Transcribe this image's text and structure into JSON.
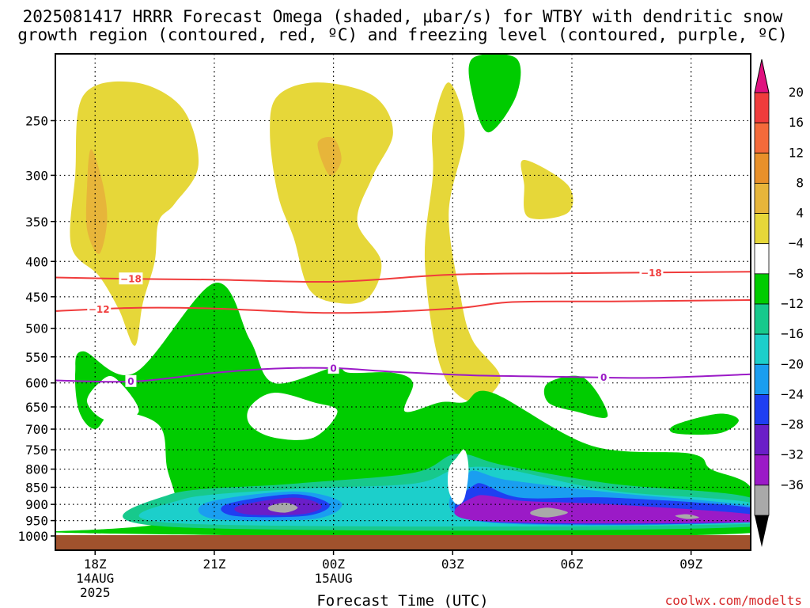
{
  "title": {
    "line1": "2025081417 HRRR Forecast Omega (shaded, μbar/s) for WTBY with dendritic snow",
    "line2": "growth region (contoured, red, ºC) and freezing level (contoured, purple, ºC)"
  },
  "credit": "coolwx.com/modelts",
  "chart_data": {
    "type": "time-height cross section",
    "xlabel": "Forecast Time (UTC)",
    "x_unit": "hours after 2025-08-14 18Z",
    "xlim": [
      -1,
      16.5
    ],
    "x_ticks": [
      {
        "x": 0,
        "lines": [
          "18Z",
          "14AUG",
          "2025"
        ]
      },
      {
        "x": 3,
        "lines": [
          "21Z"
        ]
      },
      {
        "x": 6,
        "lines": [
          "00Z",
          "15AUG"
        ]
      },
      {
        "x": 9,
        "lines": [
          "03Z"
        ]
      },
      {
        "x": 12,
        "lines": [
          "06Z"
        ]
      },
      {
        "x": 15,
        "lines": [
          "09Z"
        ]
      }
    ],
    "y_unit": "hPa",
    "y_scale": "log (pressure)",
    "ylim": [
      200,
      1000
    ],
    "y_ticks": [
      250,
      300,
      350,
      400,
      450,
      500,
      550,
      600,
      650,
      700,
      750,
      800,
      850,
      900,
      950,
      1000
    ],
    "grid": "dotted",
    "ground_color": "#a0522d",
    "colorbar": {
      "labels": [
        "20",
        "16",
        "12",
        "8",
        "4",
        "−4",
        "−8",
        "−12",
        "−16",
        "−20",
        "−24",
        "−28",
        "−32",
        "−36"
      ],
      "top_arrow_color": "#e0117f",
      "bottom_arrow_color": "#000000",
      "colors": [
        "#f03c3c",
        "#f46a3a",
        "#e8902a",
        "#e7b53a",
        "#e6d739",
        "#ffffff",
        "#00cc00",
        "#17c98c",
        "#1ccfcb",
        "#1a9ef0",
        "#1f3ff2",
        "#6a1ec8",
        "#9b1ac7",
        "#a9a9a9"
      ]
    },
    "omega_regions": [
      {
        "level": "4 to 8",
        "color": "#e6d739",
        "points": [
          [
            -0.3,
            230
          ],
          [
            1,
            220
          ],
          [
            2.2,
            240
          ],
          [
            2.6,
            290
          ],
          [
            2,
            330
          ],
          [
            1.6,
            350
          ],
          [
            1.5,
            400
          ],
          [
            1.2,
            460
          ],
          [
            1,
            530
          ],
          [
            0.6,
            470
          ],
          [
            0.1,
            420
          ],
          [
            -0.6,
            380
          ],
          [
            -0.5,
            300
          ]
        ]
      },
      {
        "level": "8 to 12",
        "color": "#e7b53a",
        "points": [
          [
            -0.1,
            275
          ],
          [
            0.2,
            310
          ],
          [
            0.3,
            350
          ],
          [
            0.1,
            390
          ],
          [
            -0.2,
            360
          ],
          [
            -0.2,
            310
          ]
        ]
      },
      {
        "level": "4 to 8",
        "color": "#e6d739",
        "points": [
          [
            4.6,
            230
          ],
          [
            5.6,
            220
          ],
          [
            7,
            230
          ],
          [
            7.5,
            260
          ],
          [
            7,
            300
          ],
          [
            6.6,
            350
          ],
          [
            7.2,
            400
          ],
          [
            6.9,
            450
          ],
          [
            6.2,
            460
          ],
          [
            5.4,
            440
          ],
          [
            5,
            370
          ],
          [
            4.6,
            320
          ],
          [
            4.4,
            260
          ]
        ]
      },
      {
        "level": "8 to 12",
        "color": "#e7b53a",
        "points": [
          [
            5.6,
            270
          ],
          [
            6,
            265
          ],
          [
            6.2,
            285
          ],
          [
            5.9,
            300
          ]
        ]
      },
      {
        "level": "4 to 8",
        "color": "#e6d739",
        "points": [
          [
            8.5,
            255
          ],
          [
            8.9,
            220
          ],
          [
            9.3,
            260
          ],
          [
            8.9,
            340
          ],
          [
            9.2,
            450
          ],
          [
            9.5,
            520
          ],
          [
            10.2,
            590
          ],
          [
            9.5,
            640
          ],
          [
            8.7,
            570
          ],
          [
            8.3,
            400
          ],
          [
            8.5,
            300
          ]
        ]
      },
      {
        "level": "4 to 8",
        "color": "#e6d739",
        "points": [
          [
            10.8,
            285
          ],
          [
            11.9,
            310
          ],
          [
            11.9,
            340
          ],
          [
            10.9,
            345
          ],
          [
            10.8,
            310
          ]
        ]
      },
      {
        "level": "4 to 8",
        "color": "#e6d739",
        "points": [
          [
            3.1,
            760
          ],
          [
            4.7,
            740
          ],
          [
            5.3,
            760
          ],
          [
            3.2,
            790
          ]
        ]
      },
      {
        "level": "-4 to -8",
        "color": "#00cc00",
        "points": [
          [
            9.5,
            203
          ],
          [
            10.6,
            203
          ],
          [
            10.6,
            230
          ],
          [
            9.9,
            260
          ],
          [
            9.5,
            230
          ]
        ]
      },
      {
        "level": "-4 to -8",
        "color": "#00cc00",
        "points": [
          [
            -0.3,
            540
          ],
          [
            1,
            580
          ],
          [
            3,
            430
          ],
          [
            3.9,
            520
          ],
          [
            4.5,
            600
          ],
          [
            6,
            570
          ],
          [
            6.4,
            580
          ],
          [
            7.5,
            580
          ],
          [
            8,
            600
          ],
          [
            7.8,
            660
          ],
          [
            8.7,
            640
          ],
          [
            9.3,
            640
          ],
          [
            10,
            620
          ],
          [
            12.5,
            740
          ],
          [
            15,
            760
          ],
          [
            15.5,
            800
          ],
          [
            16.5,
            850
          ],
          [
            16.5,
            990
          ],
          [
            -0.5,
            990
          ],
          [
            1.9,
            950
          ],
          [
            1.8,
            790
          ],
          [
            1.6,
            690
          ],
          [
            0.5,
            660
          ],
          [
            0,
            700
          ],
          [
            -0.4,
            660
          ],
          [
            -0.5,
            580
          ]
        ]
      },
      {
        "level": "-8 to -12",
        "color": "#17c98c",
        "points": [
          [
            1.9,
            870
          ],
          [
            5,
            840
          ],
          [
            8,
            810
          ],
          [
            9.1,
            760
          ],
          [
            10.3,
            790
          ],
          [
            13,
            840
          ],
          [
            16.5,
            880
          ],
          [
            16.5,
            970
          ],
          [
            1.9,
            970
          ]
        ]
      },
      {
        "level": "-12 to -16",
        "color": "#1ccfcb",
        "points": [
          [
            2.2,
            885
          ],
          [
            5,
            855
          ],
          [
            8,
            840
          ],
          [
            9.1,
            800
          ],
          [
            10.3,
            800
          ],
          [
            13,
            860
          ],
          [
            16.5,
            895
          ],
          [
            16.5,
            960
          ],
          [
            2.3,
            960
          ]
        ]
      },
      {
        "level": "-16 to -20",
        "color": "#1a9ef0",
        "points": [
          [
            2.8,
            895
          ],
          [
            5,
            862
          ],
          [
            6.2,
            895
          ],
          [
            5.5,
            945
          ],
          [
            3,
            945
          ]
        ]
      },
      {
        "level": "-16 to -20",
        "color": "#1a9ef0",
        "points": [
          [
            9.4,
            810
          ],
          [
            10.4,
            830
          ],
          [
            13,
            865
          ],
          [
            16.5,
            905
          ],
          [
            16.5,
            955
          ],
          [
            9.5,
            950
          ]
        ]
      },
      {
        "level": "-20 to -24",
        "color": "#1f3ff2",
        "points": [
          [
            3.3,
            900
          ],
          [
            5,
            870
          ],
          [
            5.9,
            900
          ],
          [
            5.3,
            935
          ],
          [
            3.5,
            935
          ]
        ]
      },
      {
        "level": "-20 to -24",
        "color": "#1f3ff2",
        "points": [
          [
            9.6,
            840
          ],
          [
            10.7,
            880
          ],
          [
            13,
            880
          ],
          [
            16.5,
            910
          ],
          [
            16.5,
            955
          ],
          [
            9.6,
            950
          ]
        ]
      },
      {
        "level": "-24 to -28",
        "color": "#6a1ec8",
        "points": [
          [
            3.6,
            905
          ],
          [
            5,
            880
          ],
          [
            5.7,
            905
          ],
          [
            5.2,
            930
          ],
          [
            3.8,
            930
          ]
        ]
      },
      {
        "level": "-28 to -32",
        "color": "#9b1ac7",
        "points": [
          [
            9.6,
            875
          ],
          [
            10.8,
            890
          ],
          [
            13,
            900
          ],
          [
            16.5,
            930
          ],
          [
            16.5,
            955
          ],
          [
            9.6,
            950
          ]
        ]
      },
      {
        "level": "-32 to -36",
        "color": "#a9a9a9",
        "points": [
          [
            4.4,
            905
          ],
          [
            4.8,
            895
          ],
          [
            5.1,
            910
          ],
          [
            4.8,
            925
          ],
          [
            4.4,
            918
          ]
        ]
      },
      {
        "level": "-32 to -36",
        "color": "#a9a9a9",
        "points": [
          [
            11,
            920
          ],
          [
            11.4,
            910
          ],
          [
            11.9,
            925
          ],
          [
            11.4,
            940
          ],
          [
            11,
            932
          ]
        ]
      },
      {
        "level": "-32 to -36",
        "color": "#a9a9a9",
        "points": [
          [
            14.6,
            935
          ],
          [
            14.9,
            930
          ],
          [
            15.2,
            940
          ],
          [
            14.9,
            945
          ]
        ]
      }
    ],
    "omega_holes": [
      {
        "color": "#ffffff",
        "points": [
          [
            9.1,
            770
          ],
          [
            9.3,
            750
          ],
          [
            9.4,
            800
          ],
          [
            9.3,
            880
          ],
          [
            9.1,
            900
          ],
          [
            8.9,
            860
          ],
          [
            8.9,
            800
          ]
        ]
      },
      {
        "color": "#ffffff",
        "points": [
          [
            0.1,
            600
          ],
          [
            0.5,
            590
          ],
          [
            1.1,
            660
          ],
          [
            0.3,
            680
          ],
          [
            -0.2,
            640
          ]
        ]
      },
      {
        "color": "#ffffff",
        "points": [
          [
            3.9,
            650
          ],
          [
            4.5,
            620
          ],
          [
            5.5,
            640
          ],
          [
            6.1,
            660
          ],
          [
            5.5,
            720
          ],
          [
            4.5,
            720
          ],
          [
            3.9,
            690
          ]
        ]
      }
    ],
    "omega_green_islands": [
      {
        "color": "#00cc00",
        "points": [
          [
            6.2,
            610
          ],
          [
            6.9,
            590
          ],
          [
            7.6,
            630
          ],
          [
            7.3,
            690
          ],
          [
            6.5,
            670
          ],
          [
            6.2,
            640
          ]
        ]
      },
      {
        "color": "#00cc00",
        "points": [
          [
            11.4,
            600
          ],
          [
            12.3,
            590
          ],
          [
            12.9,
            670
          ],
          [
            12.1,
            660
          ],
          [
            11.4,
            640
          ]
        ]
      },
      {
        "color": "#00cc00",
        "points": [
          [
            14.6,
            690
          ],
          [
            15.7,
            665
          ],
          [
            16.2,
            680
          ],
          [
            15.7,
            710
          ],
          [
            14.6,
            710
          ]
        ]
      }
    ],
    "contours": [
      {
        "name": "-18",
        "color": "#f03c3c",
        "label": "−18",
        "label_x": [
          0.9,
          14
        ],
        "points": [
          [
            -1,
            422
          ],
          [
            1,
            424
          ],
          [
            3,
            425
          ],
          [
            6,
            428
          ],
          [
            9,
            418
          ],
          [
            12,
            416
          ],
          [
            16.5,
            414
          ]
        ]
      },
      {
        "name": "-12",
        "color": "#f03c3c",
        "label": "−12",
        "label_x": [
          0.1
        ],
        "points": [
          [
            -1,
            472
          ],
          [
            1,
            467
          ],
          [
            3,
            468
          ],
          [
            6,
            475
          ],
          [
            9,
            468
          ],
          [
            10.5,
            458
          ],
          [
            13,
            457
          ],
          [
            16.5,
            455
          ]
        ]
      },
      {
        "name": "0",
        "color": "#9b1ac7",
        "label": "0",
        "label_x": [
          0.9,
          6,
          12.8
        ],
        "points": [
          [
            -1,
            595
          ],
          [
            1,
            597
          ],
          [
            3,
            580
          ],
          [
            4.5,
            572
          ],
          [
            6,
            571
          ],
          [
            7.5,
            578
          ],
          [
            9.5,
            585
          ],
          [
            12,
            588
          ],
          [
            14,
            590
          ],
          [
            16.5,
            583
          ]
        ]
      }
    ]
  }
}
